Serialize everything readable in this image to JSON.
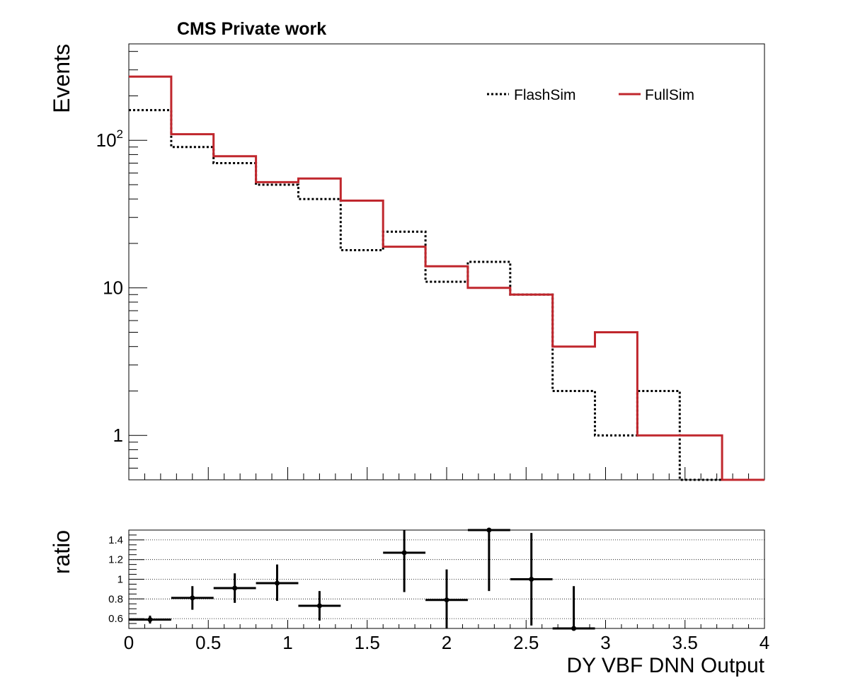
{
  "chart_data": [
    {
      "type": "histogram",
      "panel": "main",
      "title": "CMS Private work",
      "ylabel": "Events",
      "xlabel": "",
      "xlim": [
        0,
        4
      ],
      "ylim": [
        0.5,
        450
      ],
      "y_scale": "log",
      "y_tick_labels": [
        "1",
        "10",
        "10^2"
      ],
      "y_tick_values": [
        1,
        10,
        100
      ],
      "legend_position": "top-right",
      "bin_edges": [
        0,
        0.2667,
        0.5333,
        0.8,
        1.0667,
        1.3333,
        1.6,
        1.8667,
        2.1333,
        2.4,
        2.6667,
        2.9333,
        3.2,
        3.4667,
        3.7333,
        4.0
      ],
      "series": [
        {
          "name": "FlashSim",
          "style": "dotted",
          "color": "#000000",
          "values": [
            160,
            90,
            70,
            50,
            40,
            18,
            24,
            11,
            15,
            9,
            2,
            1,
            2,
            0.5,
            0.5
          ]
        },
        {
          "name": "FullSim",
          "style": "solid",
          "color": "#c0272d",
          "values": [
            270,
            110,
            78,
            52,
            55,
            39,
            19,
            14,
            10,
            9,
            4,
            5,
            1,
            1,
            0.5
          ]
        }
      ]
    },
    {
      "type": "scatter",
      "panel": "ratio",
      "ylabel": "ratio",
      "xlabel": "DY VBF DNN Output",
      "xlim": [
        0,
        4
      ],
      "ylim": [
        0.5,
        1.5
      ],
      "grid_y": true,
      "y_tick_labels": [
        "0.6",
        "0.8",
        "1",
        "1.2",
        "1.4"
      ],
      "y_tick_values": [
        0.6,
        0.8,
        1.0,
        1.2,
        1.4
      ],
      "x_tick_labels": [
        "0",
        "0.5",
        "1",
        "1.5",
        "2",
        "2.5",
        "3",
        "3.5",
        "4"
      ],
      "x_tick_values": [
        0,
        0.5,
        1,
        1.5,
        2,
        2.5,
        3,
        3.5,
        4
      ],
      "color": "#000000",
      "points": [
        {
          "x": 0.1333,
          "xerr": 0.1333,
          "y": 0.59,
          "ylo": 0.55,
          "yhi": 0.63
        },
        {
          "x": 0.4,
          "xerr": 0.1333,
          "y": 0.81,
          "ylo": 0.69,
          "yhi": 0.93
        },
        {
          "x": 0.6667,
          "xerr": 0.1333,
          "y": 0.91,
          "ylo": 0.76,
          "yhi": 1.06
        },
        {
          "x": 0.9333,
          "xerr": 0.1333,
          "y": 0.96,
          "ylo": 0.78,
          "yhi": 1.15
        },
        {
          "x": 1.2,
          "xerr": 0.1333,
          "y": 0.73,
          "ylo": 0.58,
          "yhi": 0.88
        },
        {
          "x": 1.7333,
          "xerr": 0.1333,
          "y": 1.27,
          "ylo": 0.87,
          "yhi": 1.5
        },
        {
          "x": 2.0,
          "xerr": 0.1333,
          "y": 0.79,
          "ylo": 0.5,
          "yhi": 1.1
        },
        {
          "x": 2.2667,
          "xerr": 0.1333,
          "y": 1.5,
          "ylo": 0.88,
          "yhi": 1.5
        },
        {
          "x": 2.5333,
          "xerr": 0.1333,
          "y": 1.0,
          "ylo": 0.53,
          "yhi": 1.47
        },
        {
          "x": 2.8,
          "xerr": 0.1333,
          "y": 0.5,
          "ylo": 0.5,
          "yhi": 0.93
        }
      ]
    }
  ]
}
